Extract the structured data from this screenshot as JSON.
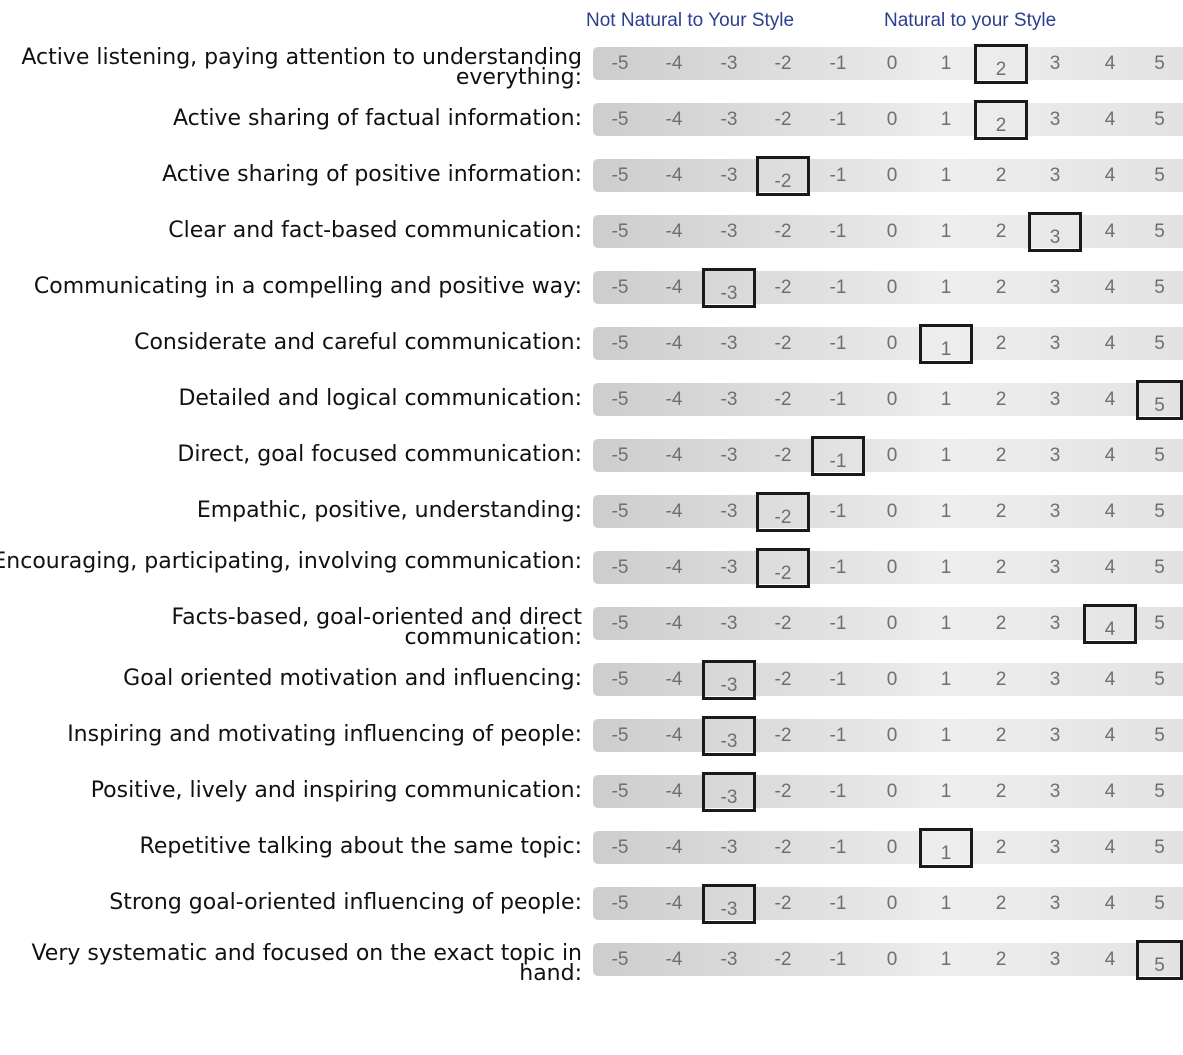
{
  "header": {
    "left_label": "Not Natural to Your Style",
    "right_label": "Natural to your Style"
  },
  "scale": [
    "-5",
    "-4",
    "-3",
    "-2",
    "-1",
    "0",
    "1",
    "2",
    "3",
    "4",
    "5"
  ],
  "items": [
    {
      "label": "Active listening, paying attention to understanding everything:",
      "selected": "2"
    },
    {
      "label": "Active sharing of factual information:",
      "selected": "2"
    },
    {
      "label": "Active sharing of positive information:",
      "selected": "-2"
    },
    {
      "label": "Clear and fact-based communication:",
      "selected": "3"
    },
    {
      "label": "Communicating in a compelling and positive way:",
      "selected": "-3"
    },
    {
      "label": "Considerate and careful communication:",
      "selected": "1"
    },
    {
      "label": "Detailed and logical communication:",
      "selected": "5"
    },
    {
      "label": "Direct, goal focused communication:",
      "selected": "-1"
    },
    {
      "label": "Empathic, positive, understanding:",
      "selected": "-2"
    },
    {
      "label": "Encouraging, participating, involving communication:",
      "selected": "-2"
    },
    {
      "label": "Facts-based, goal-oriented and direct communication:",
      "selected": "4"
    },
    {
      "label": "Goal oriented motivation and influencing:",
      "selected": "-3"
    },
    {
      "label": "Inspiring and motivating influencing of people:",
      "selected": "-3"
    },
    {
      "label": "Positive, lively and inspiring communication:",
      "selected": "-3"
    },
    {
      "label": "Repetitive talking about the same topic:",
      "selected": "1"
    },
    {
      "label": "Strong goal-oriented influencing of people:",
      "selected": "-3"
    },
    {
      "label": "Very systematic and focused on the exact topic in hand:",
      "selected": "5"
    }
  ]
}
